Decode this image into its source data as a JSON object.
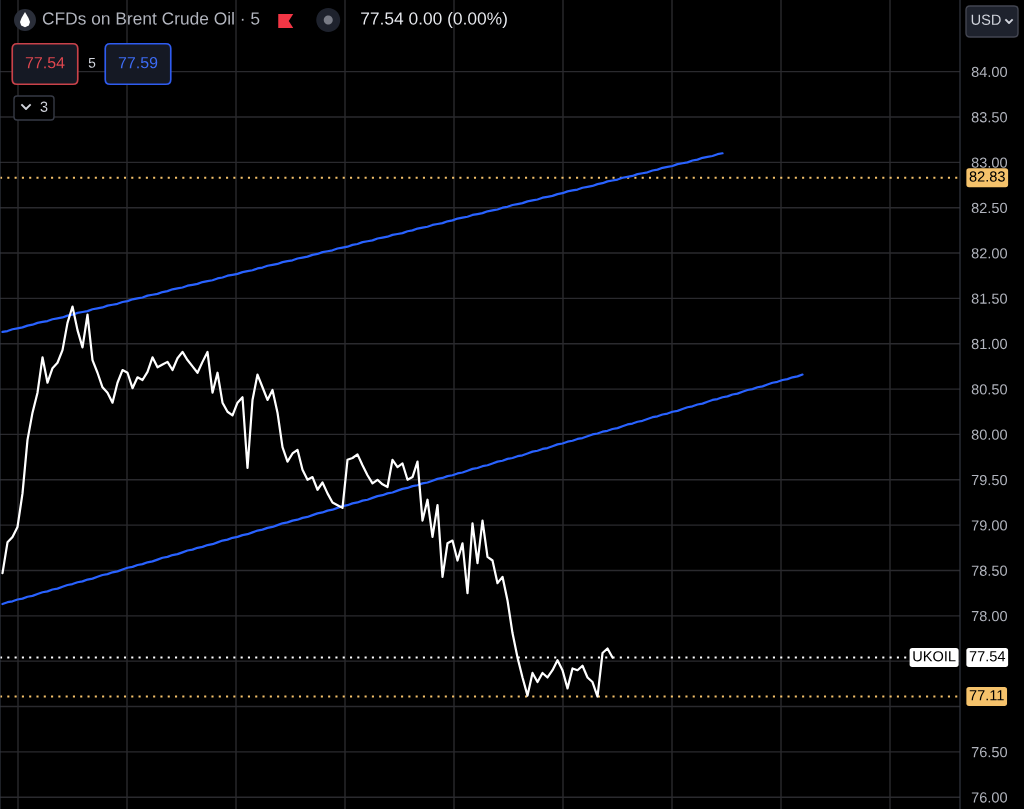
{
  "chart_data": {
    "type": "line",
    "title": "CFDs on Brent Crude Oil · 5",
    "annotations": [
      "77.54 0.00 (0.00%)",
      "77.54",
      "5",
      "77.59",
      "3",
      "USD"
    ],
    "categories": [
      null,
      null,
      null,
      null,
      null,
      null,
      null,
      null,
      null,
      null,
      null,
      null,
      null,
      null,
      null,
      null,
      null,
      null,
      null,
      null,
      null,
      null,
      null,
      null,
      null,
      null,
      null,
      null,
      null,
      null,
      null,
      null,
      null,
      null,
      null,
      null,
      null,
      null,
      null,
      null,
      null,
      null,
      null,
      null,
      null,
      null,
      null,
      null,
      null,
      null,
      null,
      null,
      null,
      null,
      null,
      null,
      null,
      null,
      null,
      null,
      null,
      null,
      null,
      null,
      null,
      null,
      null,
      null,
      null,
      null,
      null,
      null,
      null,
      null,
      null,
      null,
      null,
      null,
      null,
      null,
      null,
      null,
      null,
      null,
      null,
      null,
      null,
      null,
      null,
      null,
      null,
      null,
      null,
      null,
      null,
      null,
      null,
      null,
      null,
      null,
      null,
      null,
      null,
      null,
      null,
      null,
      null,
      null,
      null,
      null,
      null,
      null,
      null,
      null,
      null,
      null,
      null,
      null,
      null,
      null,
      null,
      null,
      null,
      null,
      null,
      null,
      null,
      null,
      null,
      null,
      null,
      null,
      null,
      null,
      null,
      null,
      null,
      null,
      null,
      null,
      null,
      null,
      null,
      null,
      null,
      null,
      null,
      null,
      null,
      null,
      null,
      null,
      null,
      null,
      null,
      null,
      null,
      null,
      null,
      null,
      null
    ],
    "series": [
      {
        "color": "#2962ff",
        "values": [
          78.13,
          78.15,
          78.16,
          78.18,
          78.19,
          78.21,
          78.22,
          78.24,
          78.26,
          78.27,
          78.29,
          78.3,
          78.32,
          78.34,
          78.35,
          78.37,
          78.38,
          78.4,
          78.41,
          78.43,
          78.45,
          78.46,
          78.48,
          78.49,
          78.51,
          78.53,
          78.54,
          78.56,
          78.57,
          78.59,
          78.6,
          78.62,
          78.64,
          78.65,
          78.67,
          78.68,
          78.7,
          78.72,
          78.73,
          78.75,
          78.76,
          78.78,
          78.79,
          78.81,
          78.83,
          78.84,
          78.86,
          78.87,
          78.89,
          78.9,
          78.92,
          78.94,
          78.95,
          78.97,
          78.98,
          79.0,
          79.02,
          79.03,
          79.05,
          79.06,
          79.08,
          79.09,
          79.11,
          79.13,
          79.14,
          79.16,
          79.17,
          79.19,
          79.21,
          79.22,
          79.24,
          79.25,
          79.27,
          79.28,
          79.3,
          79.32,
          79.33,
          79.35,
          79.36,
          79.38,
          79.4,
          79.41,
          79.43,
          79.44,
          79.46,
          79.47,
          79.49,
          79.51,
          79.52,
          79.54,
          79.55,
          79.57,
          79.58,
          79.6,
          79.62,
          79.63,
          79.65,
          79.66,
          79.68,
          79.7,
          79.71,
          79.73,
          79.74,
          79.76,
          79.77,
          79.79,
          79.81,
          79.82,
          79.84,
          79.85,
          79.87,
          79.89,
          79.9,
          79.92,
          79.93,
          79.95,
          79.96,
          79.98,
          80.0,
          80.01,
          80.03,
          80.04,
          80.06,
          80.07,
          80.09,
          80.11,
          80.12,
          80.14,
          80.15,
          80.17,
          80.19,
          80.2,
          80.22,
          80.23,
          80.25,
          80.26,
          80.28,
          80.3,
          80.31,
          80.33,
          80.34,
          80.36,
          80.38,
          80.39,
          80.41,
          80.42,
          80.44,
          80.45,
          80.47,
          80.49,
          80.5,
          80.52,
          80.53,
          80.55,
          80.57,
          80.58,
          80.6,
          80.61,
          80.63,
          80.64,
          80.66
        ]
      },
      {
        "color": "#2962ff",
        "values": [
          81.13,
          81.14,
          81.16,
          81.17,
          81.18,
          81.2,
          81.21,
          81.23,
          81.24,
          81.25,
          81.27,
          81.28,
          81.29,
          81.31,
          81.32,
          81.34,
          81.35,
          81.36,
          81.38,
          81.39,
          81.4,
          81.42,
          81.43,
          81.44,
          81.46,
          81.47,
          81.49,
          81.5,
          81.51,
          81.53,
          81.54,
          81.55,
          81.57,
          81.58,
          81.6,
          81.61,
          81.62,
          81.64,
          81.65,
          81.66,
          81.68,
          81.69,
          81.7,
          81.72,
          81.73,
          81.75,
          81.76,
          81.77,
          81.79,
          81.8,
          81.81,
          81.83,
          81.84,
          81.86,
          81.87,
          81.88,
          81.9,
          81.91,
          81.92,
          81.94,
          81.95,
          81.96,
          81.98,
          81.99,
          82.01,
          82.02,
          82.03,
          82.05,
          82.06,
          82.07,
          82.09,
          82.1,
          82.12,
          82.13,
          82.14,
          82.16,
          82.17,
          82.18,
          82.2,
          82.21,
          82.22,
          82.24,
          82.25,
          82.27,
          82.28,
          82.29,
          82.31,
          82.32,
          82.33,
          82.35,
          82.36,
          82.38,
          82.39,
          82.4,
          82.42,
          82.43,
          82.44,
          82.46,
          82.47,
          82.48,
          82.5,
          82.51,
          82.53,
          82.54,
          82.55,
          82.57,
          82.58,
          82.59,
          82.61,
          82.62,
          82.63,
          82.65,
          82.66,
          82.68,
          82.69,
          82.7,
          82.72,
          82.73,
          82.74,
          82.76,
          82.77,
          82.79,
          82.8,
          82.81,
          82.83,
          82.84,
          82.85,
          82.87,
          82.88,
          82.89,
          82.91,
          82.92,
          82.94,
          82.95,
          82.96,
          82.98,
          82.99,
          83.0,
          83.02,
          83.03,
          83.05,
          83.06,
          83.07,
          83.09,
          83.1,
          null,
          null,
          null,
          null,
          null,
          null,
          null,
          null,
          null,
          null,
          null,
          null,
          null,
          null,
          null,
          null
        ]
      },
      {
        "name": "UKOIL",
        "color": "#ffffff",
        "values": [
          78.47,
          78.81,
          78.87,
          78.98,
          79.35,
          79.94,
          80.24,
          80.46,
          80.85,
          80.57,
          80.73,
          80.79,
          80.93,
          81.23,
          81.41,
          81.15,
          80.96,
          81.32,
          80.82,
          80.68,
          80.52,
          80.46,
          80.35,
          80.57,
          80.71,
          80.68,
          80.51,
          80.63,
          80.6,
          80.69,
          80.85,
          80.74,
          80.77,
          80.8,
          80.71,
          80.84,
          80.91,
          80.82,
          80.75,
          80.68,
          80.8,
          80.91,
          80.46,
          80.68,
          80.35,
          80.25,
          80.21,
          80.35,
          80.41,
          79.63,
          80.38,
          80.66,
          80.52,
          80.38,
          80.49,
          80.24,
          79.86,
          79.7,
          79.79,
          79.83,
          79.61,
          79.5,
          79.53,
          79.39,
          79.47,
          79.35,
          79.25,
          79.22,
          79.19,
          79.72,
          79.74,
          79.78,
          79.66,
          79.55,
          79.46,
          79.5,
          79.45,
          79.42,
          79.72,
          79.64,
          79.68,
          79.5,
          79.53,
          79.7,
          79.05,
          79.28,
          78.87,
          79.22,
          78.43,
          78.8,
          78.83,
          78.61,
          78.8,
          78.25,
          79.02,
          78.58,
          79.05,
          78.65,
          78.61,
          78.36,
          78.43,
          78.17,
          77.81,
          77.54,
          77.32,
          77.12,
          77.37,
          77.27,
          77.37,
          77.32,
          77.4,
          77.51,
          77.4,
          77.2,
          77.42,
          77.4,
          77.45,
          77.32,
          77.27,
          77.11,
          77.59,
          77.64,
          77.54,
          null,
          null,
          null,
          null,
          null,
          null,
          null,
          null,
          null,
          null,
          null,
          null,
          null,
          null,
          null,
          null,
          null,
          null,
          null,
          null,
          null,
          null,
          null,
          null,
          null,
          null,
          null,
          null,
          null,
          null,
          null,
          null,
          null,
          null,
          null,
          null,
          null,
          null
        ]
      }
    ],
    "ylim": [
      75.87,
      84.79
    ],
    "yticks": [
      {
        "value": 76,
        "label": "76.00"
      },
      {
        "value": 76.5,
        "label": "76.50"
      },
      {
        "value": 77,
        "label": null
      },
      {
        "value": 77.5,
        "label": null
      },
      {
        "value": 78,
        "label": "78.00"
      },
      {
        "value": 78.5,
        "label": "78.50"
      },
      {
        "value": 79,
        "label": "79.00"
      },
      {
        "value": 79.5,
        "label": "79.50"
      },
      {
        "value": 80,
        "label": "80.00"
      },
      {
        "value": 80.5,
        "label": "80.50"
      },
      {
        "value": 81,
        "label": "81.00"
      },
      {
        "value": 81.5,
        "label": "81.50"
      },
      {
        "value": 82,
        "label": "82.00"
      },
      {
        "value": 82.5,
        "label": "82.50"
      },
      {
        "value": 83,
        "label": "83.00"
      },
      {
        "value": 83.5,
        "label": "83.50"
      },
      {
        "value": 84,
        "label": "84.00"
      }
    ],
    "grid": true,
    "line_style": "solid",
    "ref_lines": [
      {
        "axis": "y",
        "value": 82.83,
        "label": "82.83",
        "color": "#f5c26b",
        "line_style": "dotted"
      },
      {
        "axis": "y",
        "value": 77.11,
        "label": "77.11",
        "color": "#f5c26b",
        "line_style": "dotted"
      },
      {
        "axis": "y",
        "value": 77.54,
        "label": "77.54",
        "color": "#ffffff",
        "line_style": "dotted"
      }
    ]
  }
}
